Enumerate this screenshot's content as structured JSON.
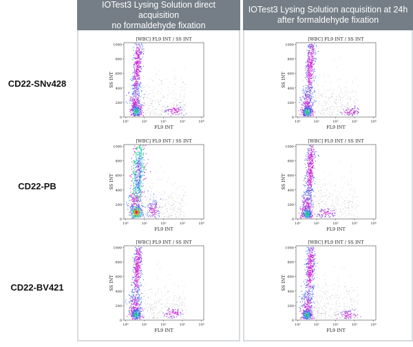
{
  "columns": [
    {
      "line1": "IOTest3 Lysing Solution direct acquisition",
      "line2": "no formaldehyde fixation"
    },
    {
      "line1": "IOTest3 Lysing Solution acquisition at 24h",
      "line2": "after formaldehyde fixation"
    }
  ],
  "rows": [
    {
      "label": "CD22-SNv428"
    },
    {
      "label": "CD22-PB"
    },
    {
      "label": "CD22-BV421"
    }
  ],
  "plot": {
    "title": "[WBC] FL9 INT / SS INT",
    "xlabel": "FL9 INT",
    "ylabel": "SS INT",
    "yticks": [
      "0",
      "200",
      "400",
      "600",
      "800",
      "1000"
    ],
    "xticks": [
      "10⁰",
      "10¹",
      "10²",
      "10³",
      "10⁴"
    ]
  },
  "colors": {
    "header_bg": "#757e86",
    "panel_border": "#d7dade",
    "magenta": "#d21ad6",
    "purple": "#8a3ae0",
    "blue": "#3a6de8",
    "cyan": "#20c8c0",
    "green": "#30c060",
    "gray_dot": "#8c8c8c"
  },
  "chart_data": [
    {
      "type": "scatter",
      "row": "CD22-SNv428",
      "column": "direct acquisition",
      "title": "[WBC] FL9 INT / SS INT",
      "xlabel": "FL9 INT",
      "ylabel": "SS INT",
      "xscale": "log",
      "xlim": [
        1,
        100000
      ],
      "ylim": [
        0,
        1024
      ],
      "populations": [
        {
          "center_x": 6,
          "center_y": 80,
          "spread": "dense core"
        },
        {
          "center_x": 7,
          "center_y": 700,
          "spread": "vertical streak"
        },
        {
          "center_x": 5,
          "center_y": 230,
          "spread": "medium"
        },
        {
          "center_x": 1500,
          "center_y": 90,
          "spread": "small"
        }
      ]
    },
    {
      "type": "scatter",
      "row": "CD22-SNv428",
      "column": "acquisition at 24h",
      "title": "[WBC] FL9 INT / SS INT",
      "xlabel": "FL9 INT",
      "ylabel": "SS INT",
      "xscale": "log",
      "xlim": [
        1,
        100000
      ],
      "ylim": [
        0,
        1024
      ],
      "populations": [
        {
          "center_x": 5,
          "center_y": 70,
          "spread": "dense core"
        },
        {
          "center_x": 8,
          "center_y": 700,
          "spread": "vertical streak"
        },
        {
          "center_x": 5,
          "center_y": 220,
          "spread": "medium"
        },
        {
          "center_x": 2500,
          "center_y": 70,
          "spread": "small"
        }
      ]
    },
    {
      "type": "scatter",
      "row": "CD22-PB",
      "column": "direct acquisition",
      "title": "[WBC] FL9 INT / SS INT",
      "xlabel": "FL9 INT",
      "ylabel": "SS INT",
      "xscale": "log",
      "xlim": [
        1,
        100000
      ],
      "ylim": [
        0,
        1024
      ],
      "populations": [
        {
          "center_x": 6,
          "center_y": 90,
          "spread": "dense core"
        },
        {
          "center_x": 8,
          "center_y": 650,
          "spread": "broad vertical band"
        },
        {
          "center_x": 5,
          "center_y": 250,
          "spread": "medium"
        },
        {
          "center_x": 70,
          "center_y": 110,
          "spread": "medium"
        }
      ]
    },
    {
      "type": "scatter",
      "row": "CD22-PB",
      "column": "acquisition at 24h",
      "title": "[WBC] FL9 INT / SS INT",
      "xlabel": "FL9 INT",
      "ylabel": "SS INT",
      "xscale": "log",
      "xlim": [
        1,
        100000
      ],
      "ylim": [
        0,
        1024
      ],
      "populations": [
        {
          "center_x": 5,
          "center_y": 70,
          "spread": "dense core"
        },
        {
          "center_x": 8,
          "center_y": 700,
          "spread": "vertical streak"
        },
        {
          "center_x": 5,
          "center_y": 230,
          "spread": "medium"
        },
        {
          "center_x": 80,
          "center_y": 80,
          "spread": "small"
        }
      ]
    },
    {
      "type": "scatter",
      "row": "CD22-BV421",
      "column": "direct acquisition",
      "title": "[WBC] FL9 INT / SS INT",
      "xlabel": "FL9 INT",
      "ylabel": "SS INT",
      "xscale": "log",
      "xlim": [
        1,
        100000
      ],
      "ylim": [
        0,
        1024
      ],
      "populations": [
        {
          "center_x": 6,
          "center_y": 80,
          "spread": "dense core"
        },
        {
          "center_x": 7,
          "center_y": 720,
          "spread": "vertical streak"
        },
        {
          "center_x": 5,
          "center_y": 230,
          "spread": "medium"
        },
        {
          "center_x": 1200,
          "center_y": 90,
          "spread": "small"
        }
      ]
    },
    {
      "type": "scatter",
      "row": "CD22-BV421",
      "column": "acquisition at 24h",
      "title": "[WBC] FL9 INT / SS INT",
      "xlabel": "FL9 INT",
      "ylabel": "SS INT",
      "xscale": "log",
      "xlim": [
        1,
        100000
      ],
      "ylim": [
        0,
        1024
      ],
      "populations": [
        {
          "center_x": 5,
          "center_y": 70,
          "spread": "dense core"
        },
        {
          "center_x": 8,
          "center_y": 700,
          "spread": "vertical streak"
        },
        {
          "center_x": 5,
          "center_y": 220,
          "spread": "medium"
        },
        {
          "center_x": 2000,
          "center_y": 70,
          "spread": "small"
        }
      ]
    }
  ]
}
